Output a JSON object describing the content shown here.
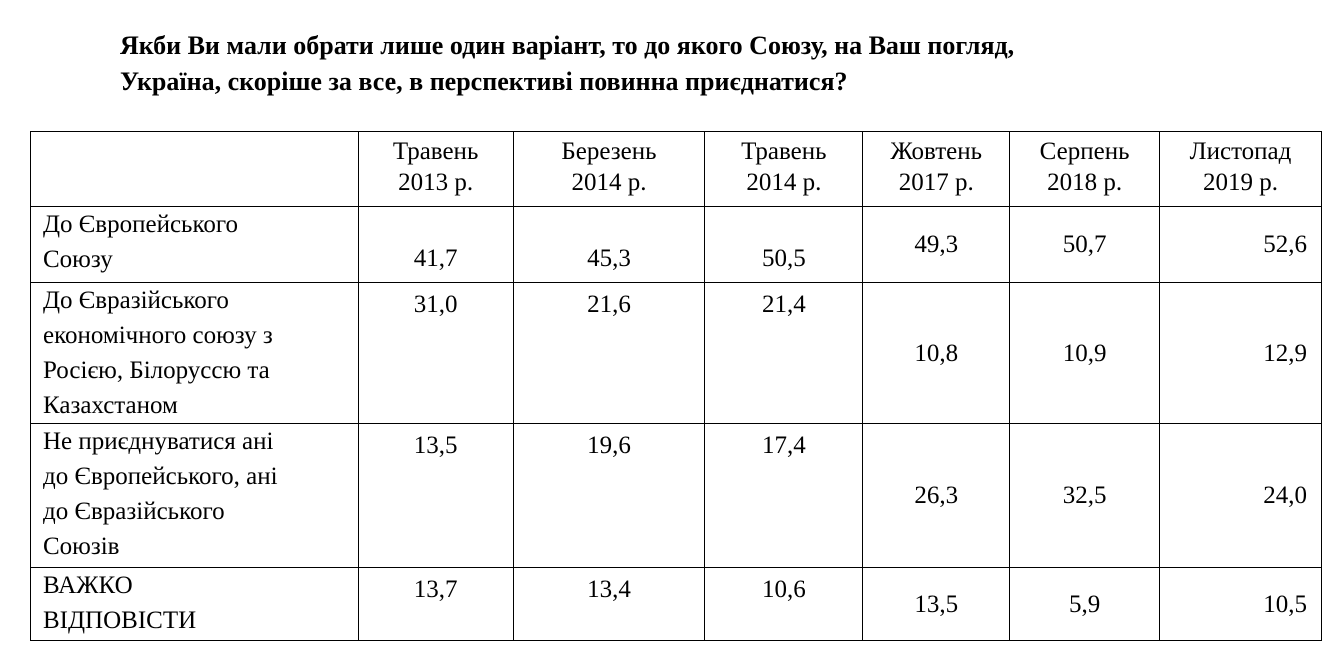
{
  "title": "Якби Ви мали обрати лише один варіант, то до якого Союзу,  на Ваш погляд,\nУкраїна, скоріше за все, в перспективі повинна приєднатися?",
  "table": {
    "header": [
      "",
      "Травень\n2013 р.",
      "Березень\n2014 р.",
      "Травень\n2014 р.",
      "Жовтень\n2017 р.",
      "Серпень\n2018 р.",
      "Листопад\n2019 р."
    ],
    "rows": [
      [
        "До Європейського\nСоюзу",
        "41,7",
        "45,3",
        "50,5",
        "49,3",
        "50,7",
        "52,6"
      ],
      [
        "До Євразійського\nекономічного союзу  з\nРосією, Білоруссю та\nКазахстаном",
        "31,0",
        "21,6",
        "21,4",
        "10,8",
        "10,9",
        "12,9"
      ],
      [
        "Не приєднуватися ані\nдо Європейського, ані\nдо Євразійського\nСоюзів",
        "13,5",
        "19,6",
        "17,4",
        "26,3",
        "32,5",
        "24,0"
      ],
      [
        "ВАЖКО\nВІДПОВІСТИ",
        "13,7",
        "13,4",
        "10,6",
        "13,5",
        "5,9",
        "10,5"
      ]
    ]
  }
}
